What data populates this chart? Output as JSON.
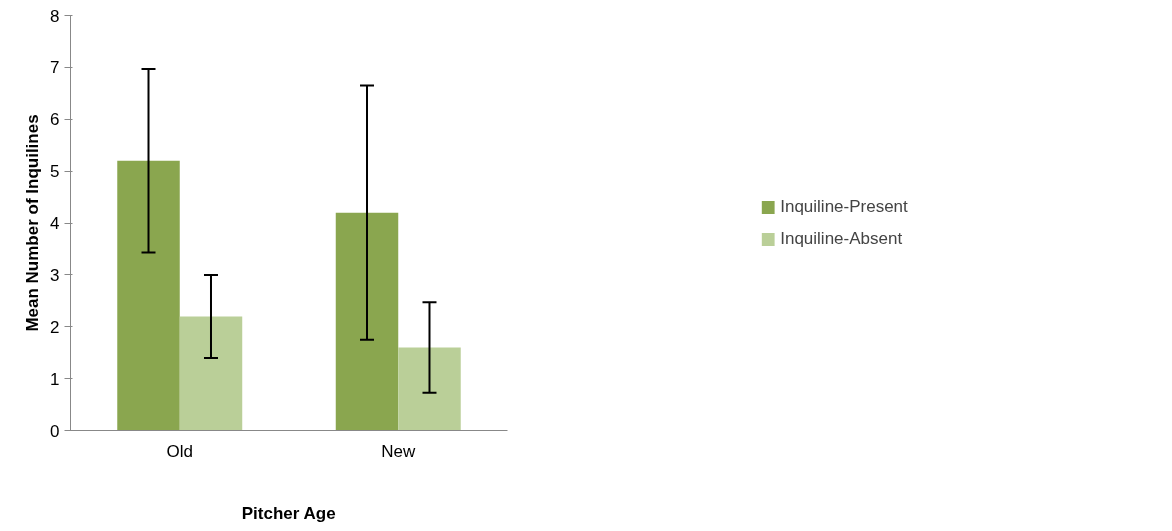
{
  "chart_data": {
    "type": "bar",
    "xlabel": "Pitcher Age",
    "ylabel": "Mean Number of Inquilines",
    "categories": [
      "Old",
      "New"
    ],
    "series": [
      {
        "name": "Inquiline-Present",
        "color": "#8aa64f",
        "values": [
          5.2,
          4.2
        ],
        "errors": [
          1.77,
          2.45
        ]
      },
      {
        "name": "Inquiline-Absent",
        "color": "#bacf98",
        "values": [
          2.2,
          1.6
        ],
        "errors": [
          0.8,
          0.87
        ]
      }
    ],
    "ylim": [
      0,
      8
    ],
    "yticks": [
      0,
      1,
      2,
      3,
      4,
      5,
      6,
      7,
      8
    ],
    "grid": false,
    "legend": "right"
  }
}
